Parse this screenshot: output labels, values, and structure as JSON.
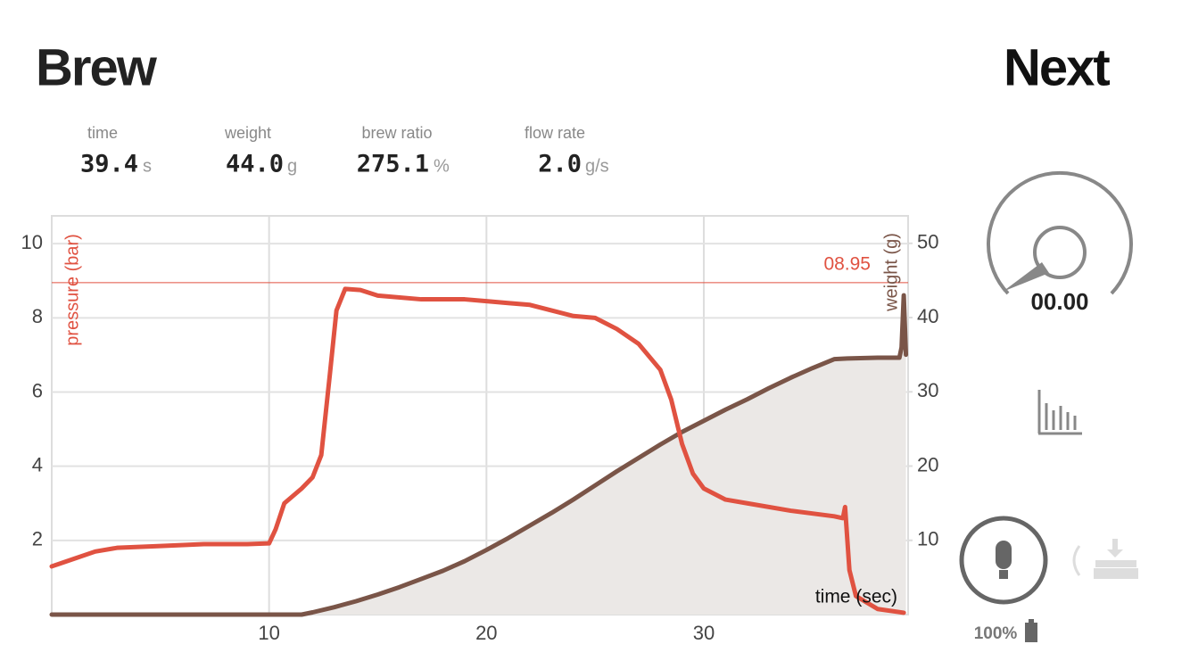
{
  "header": {
    "title": "Brew",
    "action": "Next"
  },
  "stats": [
    {
      "label": "time",
      "value": "39.4",
      "unit": "s"
    },
    {
      "label": "weight",
      "value": "44.0",
      "unit": "g"
    },
    {
      "label": "brew ratio",
      "value": "275.1",
      "unit": "%"
    },
    {
      "label": "flow rate",
      "value": "2.0",
      "unit": "g/s"
    }
  ],
  "gauge": {
    "value": "00.00"
  },
  "battery": {
    "label": "100%"
  },
  "chart_data": {
    "type": "line",
    "x_label": "time (sec)",
    "y_label": "pressure (bar)",
    "y2_label": "weight (g)",
    "xlim": [
      0,
      39.4
    ],
    "ylim": [
      0,
      10.75
    ],
    "y2lim": [
      0,
      53.7
    ],
    "xticks": [
      10,
      20,
      30
    ],
    "yticks": [
      2,
      4,
      6,
      8,
      10
    ],
    "y2ticks": [
      10,
      20,
      30,
      40,
      50
    ],
    "grid": true,
    "reference_line": {
      "value": 8.95,
      "label": "08.95",
      "color": "#e05241"
    },
    "series": [
      {
        "name": "pressure (bar)",
        "color": "#e05241",
        "x": [
          0,
          1,
          2,
          3,
          5,
          7,
          9,
          10,
          10.3,
          10.7,
          11.5,
          12,
          12.4,
          12.8,
          13.1,
          13.5,
          14.2,
          15,
          17,
          19,
          20,
          21,
          22,
          23,
          24,
          25,
          26,
          27,
          28,
          28.5,
          29,
          29.5,
          30,
          31,
          32,
          34,
          36,
          36.4,
          36.5,
          36.7,
          37,
          38,
          39.2
        ],
        "values": [
          1.3,
          1.5,
          1.7,
          1.8,
          1.85,
          1.9,
          1.9,
          1.92,
          2.3,
          3.0,
          3.4,
          3.7,
          4.3,
          6.5,
          8.2,
          8.78,
          8.75,
          8.6,
          8.5,
          8.5,
          8.45,
          8.4,
          8.35,
          8.2,
          8.05,
          8.0,
          7.7,
          7.3,
          6.6,
          5.8,
          4.6,
          3.8,
          3.4,
          3.1,
          3.0,
          2.8,
          2.65,
          2.6,
          2.9,
          1.2,
          0.5,
          0.15,
          0.05
        ]
      },
      {
        "name": "weight (g)",
        "color": "#7a5548",
        "axis": "y2",
        "fill": "#ebe8e6",
        "x": [
          0,
          11.5,
          12,
          13,
          14,
          15,
          16,
          17,
          18,
          19,
          20,
          21,
          22,
          23,
          24,
          25,
          26,
          27,
          28,
          29,
          30,
          31,
          32,
          33,
          34,
          35,
          36,
          36.6,
          38,
          39,
          39.1,
          39.2,
          39.3
        ],
        "values": [
          0,
          0,
          0.3,
          1,
          1.8,
          2.7,
          3.7,
          4.8,
          5.9,
          7.2,
          8.7,
          10.3,
          12,
          13.7,
          15.5,
          17.4,
          19.3,
          21.1,
          22.9,
          24.6,
          26.1,
          27.6,
          29,
          30.5,
          31.9,
          33.2,
          34.4,
          34.5,
          34.6,
          34.6,
          36,
          43,
          35
        ]
      }
    ]
  }
}
